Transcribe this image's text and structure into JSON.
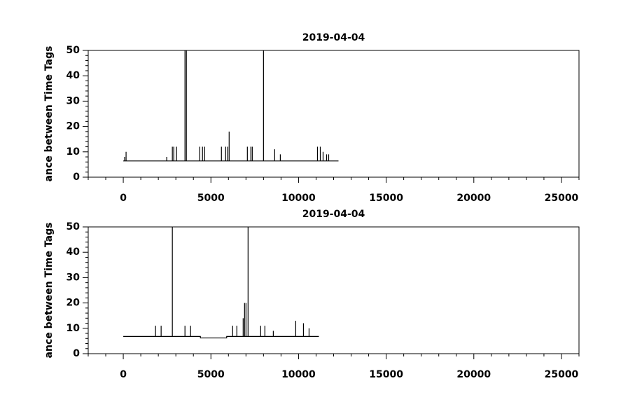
{
  "chart_data": [
    {
      "type": "line",
      "title": "2019-04-04",
      "ylabel": "ance between Time Tags",
      "color": "#000000",
      "xlim": [
        -2000,
        26000
      ],
      "xticks": [
        0,
        5000,
        10000,
        15000,
        20000,
        25000
      ],
      "xminor": [
        -2000,
        -1000,
        1000,
        2000,
        3000,
        4000,
        6000,
        7000,
        8000,
        9000,
        11000,
        12000,
        13000,
        14000,
        16000,
        17000,
        18000,
        19000,
        21000,
        22000,
        23000,
        24000,
        26000
      ],
      "ylim": [
        0,
        50
      ],
      "yticks": [
        0,
        10,
        20,
        30,
        40,
        50
      ],
      "yminor": [
        2,
        4,
        6,
        8,
        12,
        14,
        16,
        18,
        22,
        24,
        26,
        28,
        32,
        34,
        36,
        38,
        42,
        44,
        46,
        48
      ],
      "x": [
        0,
        80,
        80,
        80,
        160,
        160,
        160,
        2480,
        2480,
        2480,
        2800,
        2800,
        2800,
        2880,
        2880,
        2880,
        3040,
        3040,
        3040,
        3520,
        3520,
        3520,
        3600,
        3600,
        3600,
        4360,
        4360,
        4360,
        4520,
        4520,
        4520,
        4640,
        4640,
        4640,
        5600,
        5600,
        5600,
        5840,
        5840,
        5840,
        5960,
        5960,
        5960,
        6040,
        6040,
        6040,
        7080,
        7080,
        7080,
        7280,
        7280,
        7280,
        7360,
        7360,
        7360,
        8000,
        8000,
        8000,
        8640,
        8640,
        8640,
        8960,
        8960,
        8960,
        11080,
        11080,
        11080,
        11240,
        11240,
        11240,
        11400,
        11400,
        11400,
        11600,
        11600,
        11600,
        11720,
        11720,
        11720,
        12280
      ],
      "values": [
        6.4,
        6.4,
        8,
        6.4,
        6.4,
        10,
        6.4,
        6.4,
        8,
        6.4,
        6.4,
        12,
        6.4,
        6.4,
        12,
        6.4,
        6.4,
        12,
        6.4,
        6.4,
        50,
        6.4,
        6.4,
        50,
        6.4,
        6.4,
        12,
        6.4,
        6.4,
        12,
        6.4,
        6.4,
        12,
        6.4,
        6.4,
        12,
        6.4,
        6.4,
        12,
        6.4,
        6.4,
        12,
        6.4,
        6.4,
        18,
        6.4,
        6.4,
        12,
        6.4,
        6.4,
        12,
        6.4,
        6.4,
        12,
        6.4,
        6.4,
        50,
        6.4,
        6.4,
        11,
        6.4,
        6.4,
        9,
        6.4,
        6.4,
        12,
        6.4,
        6.4,
        12,
        6.4,
        6.4,
        10,
        6.4,
        6.4,
        9,
        6.4,
        6.4,
        9,
        6.4,
        6.4
      ]
    },
    {
      "type": "line",
      "title": "2019-04-04",
      "ylabel": "ance between Time Tags",
      "color": "#000000",
      "xlim": [
        -2000,
        26000
      ],
      "xticks": [
        0,
        5000,
        10000,
        15000,
        20000,
        25000
      ],
      "xminor": [
        -2000,
        -1000,
        1000,
        2000,
        3000,
        4000,
        6000,
        7000,
        8000,
        9000,
        11000,
        12000,
        13000,
        14000,
        16000,
        17000,
        18000,
        19000,
        21000,
        22000,
        23000,
        24000,
        26000
      ],
      "ylim": [
        0,
        50
      ],
      "yticks": [
        0,
        10,
        20,
        30,
        40,
        50
      ],
      "yminor": [
        2,
        4,
        6,
        8,
        12,
        14,
        16,
        18,
        22,
        24,
        26,
        28,
        32,
        34,
        36,
        38,
        42,
        44,
        46,
        48
      ],
      "x": [
        0,
        1840,
        1840,
        1840,
        2160,
        2160,
        2160,
        2800,
        2800,
        2800,
        3520,
        3520,
        3520,
        3840,
        3840,
        3840,
        4400,
        4400,
        5900,
        5900,
        6240,
        6240,
        6240,
        6480,
        6480,
        6480,
        6840,
        6840,
        6840,
        6920,
        6920,
        6920,
        7000,
        7000,
        7000,
        7120,
        7120,
        7120,
        7840,
        7840,
        7840,
        8080,
        8080,
        8080,
        8560,
        8560,
        8560,
        9840,
        9840,
        9840,
        10280,
        10280,
        10280,
        10600,
        10600,
        10600,
        11160
      ],
      "values": [
        6.8,
        6.8,
        11,
        6.8,
        6.8,
        11,
        6.8,
        6.8,
        50,
        6.8,
        6.8,
        11,
        6.8,
        6.8,
        11,
        6.8,
        6.8,
        6.2,
        6.2,
        6.8,
        6.8,
        11,
        6.8,
        6.8,
        11,
        6.8,
        6.8,
        14,
        6.8,
        6.8,
        20,
        6.8,
        6.8,
        20,
        6.8,
        6.8,
        50,
        6.8,
        6.8,
        11,
        6.8,
        6.8,
        11,
        6.8,
        6.8,
        9,
        6.8,
        6.8,
        13,
        6.8,
        6.8,
        12,
        6.8,
        6.8,
        10,
        6.8,
        6.8
      ]
    }
  ]
}
